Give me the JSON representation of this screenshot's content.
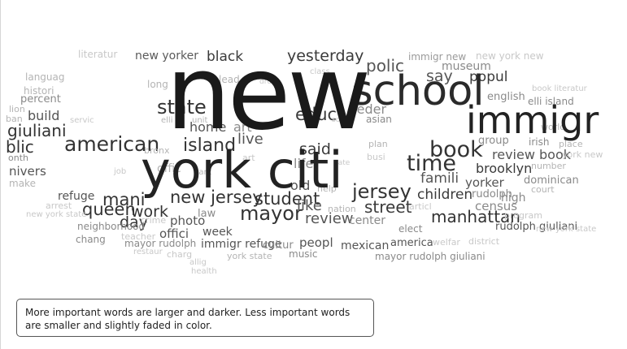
{
  "caption": "More important words are larger and darker. Less important words are smaller and slightly faded in color.",
  "words": [
    {
      "text": "literatur",
      "color": "#c8c8c8"
    },
    {
      "text": "new yorker",
      "color": "#5a5a5a"
    },
    {
      "text": "black",
      "color": "#3a3a3a"
    },
    {
      "text": "yesterday",
      "color": "#3a3a3a"
    },
    {
      "text": "polic",
      "color": "#555555"
    },
    {
      "text": "immigr new",
      "color": "#9a9a9a"
    },
    {
      "text": "new york new",
      "color": "#c8c8c8"
    },
    {
      "text": "museum",
      "color": "#8a8a8a"
    },
    {
      "text": "languag",
      "color": "#b4b4b4"
    },
    {
      "text": "histori",
      "color": "#b4b4b4"
    },
    {
      "text": "percent",
      "color": "#8a8a8a"
    },
    {
      "text": "long",
      "color": "#b4b4b4"
    },
    {
      "text": "lead",
      "color": "#b4b4b4"
    },
    {
      "text": "class",
      "color": "#c8c8c8"
    },
    {
      "text": "say",
      "color": "#555555"
    },
    {
      "text": "popul",
      "color": "#3a3a3a"
    },
    {
      "text": "book literatur",
      "color": "#c8c8c8"
    },
    {
      "text": "english",
      "color": "#8a8a8a"
    },
    {
      "text": "elli island",
      "color": "#8a8a8a"
    },
    {
      "text": "lion",
      "color": "#b4b4b4"
    },
    {
      "text": "ban",
      "color": "#b4b4b4"
    },
    {
      "text": "build",
      "color": "#555555"
    },
    {
      "text": "state",
      "color": "#333333"
    },
    {
      "text": "elli",
      "color": "#b4b4b4"
    },
    {
      "text": "unit",
      "color": "#b4b4b4"
    },
    {
      "text": "home",
      "color": "#555555"
    },
    {
      "text": "art",
      "color": "#8a8a8a"
    },
    {
      "text": "drug",
      "color": "#c8c8c8"
    },
    {
      "text": "educ",
      "color": "#3a3a3a"
    },
    {
      "text": "feder",
      "color": "#8a8a8a"
    },
    {
      "text": "asian",
      "color": "#8a8a8a"
    },
    {
      "text": "social",
      "color": "#c8c8c8"
    },
    {
      "text": "servic",
      "color": "#c8c8c8"
    },
    {
      "text": "giuliani",
      "color": "#333333"
    },
    {
      "text": "world",
      "color": "#b4b4b4"
    },
    {
      "text": "live",
      "color": "#555555"
    },
    {
      "text": "blic",
      "color": "#333333"
    },
    {
      "text": "american",
      "color": "#333333"
    },
    {
      "text": "bronx",
      "color": "#b4b4b4"
    },
    {
      "text": "island",
      "color": "#333333"
    },
    {
      "text": "said",
      "color": "#3a3a3a"
    },
    {
      "text": "plan",
      "color": "#b4b4b4"
    },
    {
      "text": "group",
      "color": "#8a8a8a"
    },
    {
      "text": "irish",
      "color": "#8a8a8a"
    },
    {
      "text": "place",
      "color": "#b4b4b4"
    },
    {
      "text": "onth",
      "color": "#8a8a8a"
    },
    {
      "text": "art",
      "color": "#c8c8c8"
    },
    {
      "text": "review book",
      "color": "#555555"
    },
    {
      "text": "york new",
      "color": "#c8c8c8"
    },
    {
      "text": "nivers",
      "color": "#555555"
    },
    {
      "text": "job",
      "color": "#c8c8c8"
    },
    {
      "text": "offic",
      "color": "#b4b4b4"
    },
    {
      "text": "park",
      "color": "#b4b4b4"
    },
    {
      "text": "life",
      "color": "#8a8a8a"
    },
    {
      "text": "rate",
      "color": "#c8c8c8"
    },
    {
      "text": "busi",
      "color": "#c8c8c8"
    },
    {
      "text": "brooklyn",
      "color": "#3a3a3a"
    },
    {
      "text": "number",
      "color": "#b4b4b4"
    },
    {
      "text": "make",
      "color": "#b4b4b4"
    },
    {
      "text": "old",
      "color": "#555555"
    },
    {
      "text": "help",
      "color": "#b4b4b4"
    },
    {
      "text": "famili",
      "color": "#555555"
    },
    {
      "text": "yorker",
      "color": "#555555"
    },
    {
      "text": "dominican",
      "color": "#8a8a8a"
    },
    {
      "text": "court",
      "color": "#b4b4b4"
    },
    {
      "text": "refuge",
      "color": "#555555"
    },
    {
      "text": "mani",
      "color": "#333333"
    },
    {
      "text": "new jersey",
      "color": "#333333"
    },
    {
      "text": "student",
      "color": "#333333"
    },
    {
      "text": "jersey",
      "color": "#333333"
    },
    {
      "text": "children",
      "color": "#3a3a3a"
    },
    {
      "text": "rudolph",
      "color": "#8a8a8a"
    },
    {
      "text": "high",
      "color": "#8a8a8a"
    },
    {
      "text": "arrest",
      "color": "#c8c8c8"
    },
    {
      "text": "queen",
      "color": "#333333"
    },
    {
      "text": "mayor",
      "color": "#333333"
    },
    {
      "text": "like",
      "color": "#555555"
    },
    {
      "text": "nation",
      "color": "#b4b4b4"
    },
    {
      "text": "street",
      "color": "#3a3a3a"
    },
    {
      "text": "articl",
      "color": "#c8c8c8"
    },
    {
      "text": "census",
      "color": "#8a8a8a"
    },
    {
      "text": "new york state",
      "color": "#c8c8c8"
    },
    {
      "text": "work",
      "color": "#333333"
    },
    {
      "text": "law",
      "color": "#8a8a8a"
    },
    {
      "text": "review",
      "color": "#555555"
    },
    {
      "text": "center",
      "color": "#8a8a8a"
    },
    {
      "text": "manhattan",
      "color": "#333333"
    },
    {
      "text": "program",
      "color": "#c8c8c8"
    },
    {
      "text": "day",
      "color": "#333333"
    },
    {
      "text": "photo",
      "color": "#555555"
    },
    {
      "text": "neighborhood",
      "color": "#8a8a8a"
    },
    {
      "text": "crime",
      "color": "#c8c8c8"
    },
    {
      "text": "elect",
      "color": "#8a8a8a"
    },
    {
      "text": "rudolph giuliani",
      "color": "#555555"
    },
    {
      "text": "new york state",
      "color": "#c8c8c8"
    },
    {
      "text": "week",
      "color": "#555555"
    },
    {
      "text": "chang",
      "color": "#8a8a8a"
    },
    {
      "text": "teacher",
      "color": "#c8c8c8"
    },
    {
      "text": "offici",
      "color": "#555555"
    },
    {
      "text": "america",
      "color": "#555555"
    },
    {
      "text": "welfar",
      "color": "#c8c8c8"
    },
    {
      "text": "district",
      "color": "#c8c8c8"
    },
    {
      "text": "mayor rudolph",
      "color": "#8a8a8a"
    },
    {
      "text": "immigr refuge",
      "color": "#555555"
    },
    {
      "text": "cultur",
      "color": "#8a8a8a"
    },
    {
      "text": "peopl",
      "color": "#555555"
    },
    {
      "text": "mexican",
      "color": "#555555"
    },
    {
      "text": "restaur",
      "color": "#c8c8c8"
    },
    {
      "text": "charg",
      "color": "#c8c8c8"
    },
    {
      "text": "york state",
      "color": "#b4b4b4"
    },
    {
      "text": "music",
      "color": "#8a8a8a"
    },
    {
      "text": "mayor rudolph giuliani",
      "color": "#8a8a8a"
    },
    {
      "text": "allig",
      "color": "#c8c8c8"
    },
    {
      "text": "health",
      "color": "#c8c8c8"
    },
    {
      "text": "immigr",
      "color": "#222222"
    },
    {
      "text": "book",
      "color": "#333333"
    },
    {
      "text": "time",
      "color": "#333333"
    },
    {
      "text": "school",
      "color": "#2a2a2a"
    },
    {
      "text": "york citi",
      "color": "#222222"
    },
    {
      "text": "new",
      "color": "#1a1a1a"
    }
  ]
}
